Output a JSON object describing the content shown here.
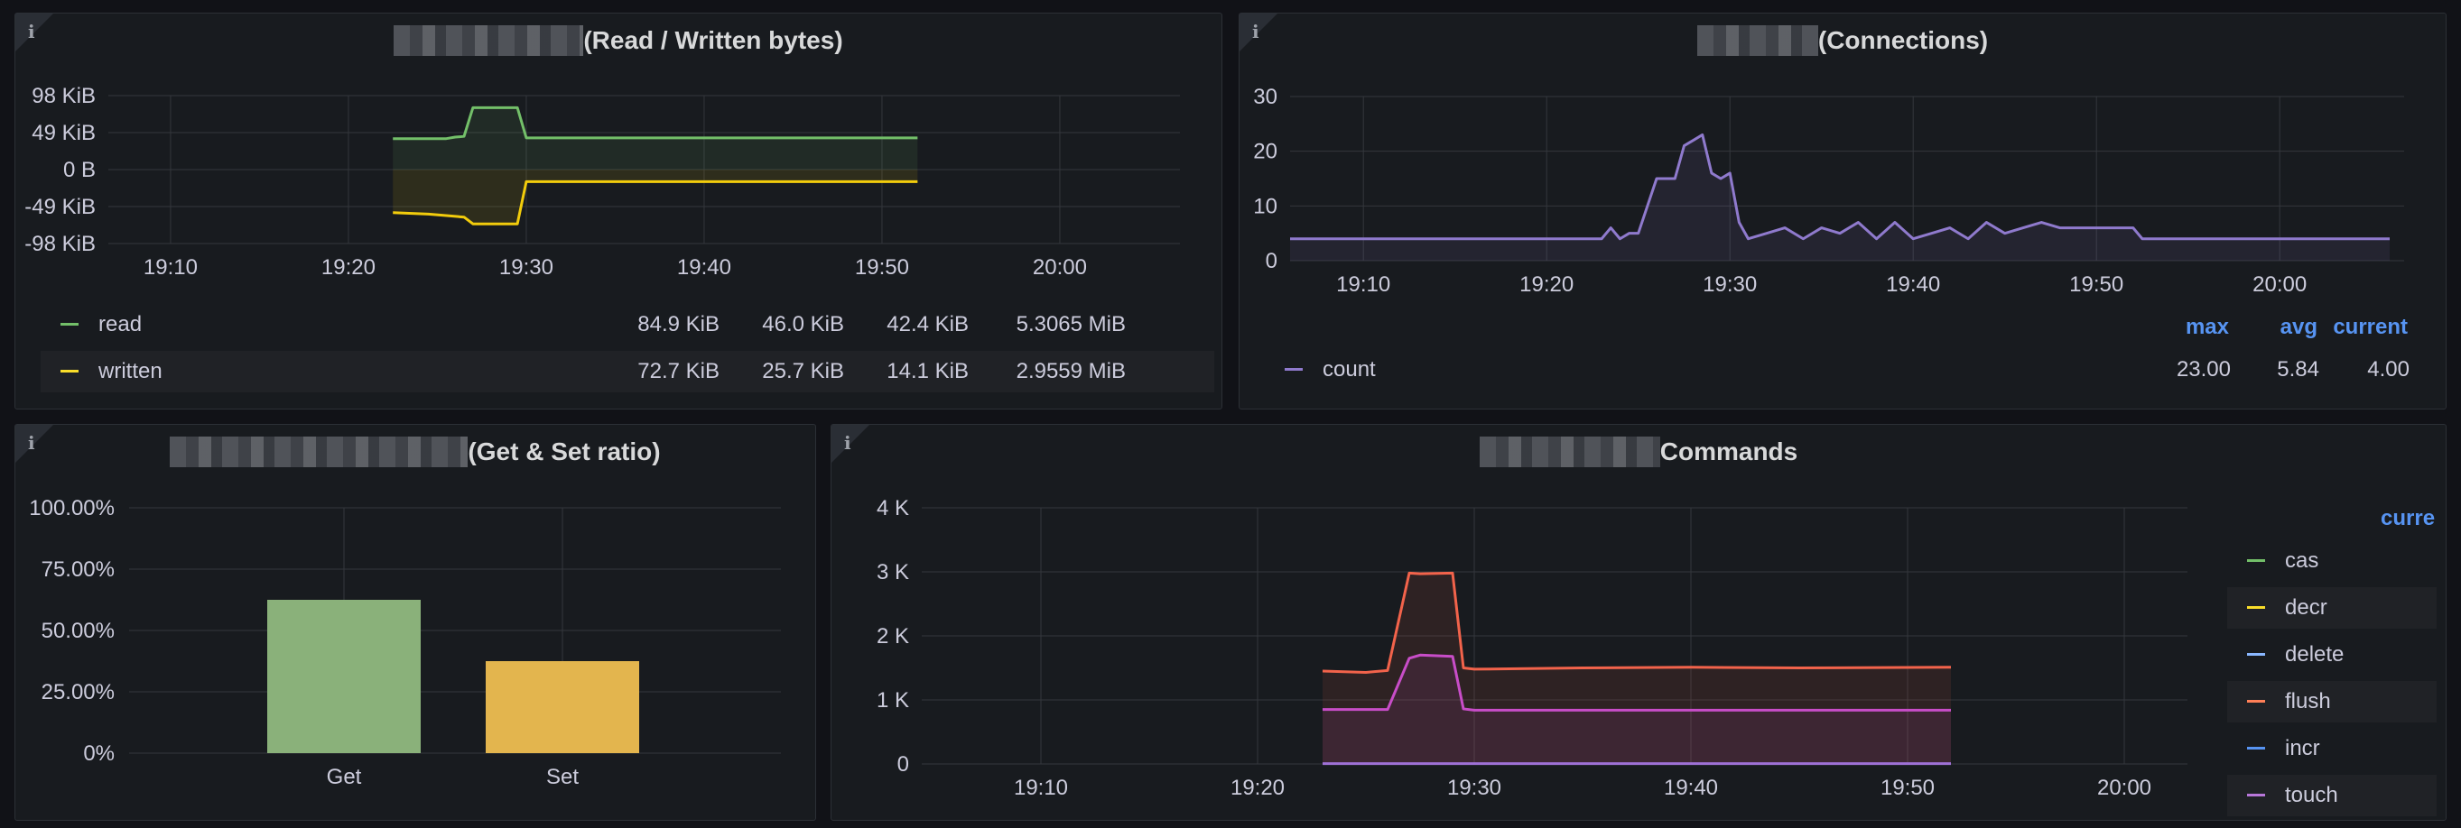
{
  "panels": {
    "bytes": {
      "title_suffix": "(Read / Written bytes)",
      "chart_data": {
        "type": "line",
        "x_ticks": [
          "19:10",
          "19:20",
          "19:30",
          "19:40",
          "19:50",
          "20:00"
        ],
        "y_ticks": [
          "98 KiB",
          "49 KiB",
          "0 B",
          "-49 KiB",
          "-98 KiB"
        ],
        "ylim": [
          -98,
          98
        ],
        "series": [
          {
            "name": "read",
            "color": "#73bf69",
            "x": [
              "19:22:30",
              "19:25:30",
              "19:26:00",
              "19:26:30",
              "19:27:00",
              "19:27:30",
              "19:29:30",
              "19:30:00",
              "19:52:00"
            ],
            "y": [
              41,
              41,
              43,
              44,
              82,
              82,
              82,
              42,
              42
            ]
          },
          {
            "name": "written",
            "color": "#f2cc0c",
            "x": [
              "19:22:30",
              "19:24:30",
              "19:25:30",
              "19:26:30",
              "19:27:00",
              "19:29:30",
              "19:30:00",
              "19:52:00"
            ],
            "y": [
              -57,
              -59,
              -61,
              -63,
              -72,
              -72,
              -16,
              -16
            ]
          }
        ]
      },
      "legend": [
        {
          "name": "read",
          "color": "#73bf69",
          "values": [
            "84.9 KiB",
            "46.0 KiB",
            "42.4 KiB",
            "5.3065 MiB"
          ]
        },
        {
          "name": "written",
          "color": "#fade2a",
          "values": [
            "72.7 KiB",
            "25.7 KiB",
            "14.1 KiB",
            "2.9559 MiB"
          ]
        }
      ]
    },
    "connections": {
      "title_suffix": "(Connections)",
      "chart_data": {
        "type": "line",
        "x_ticks": [
          "19:10",
          "19:20",
          "19:30",
          "19:40",
          "19:50",
          "20:00"
        ],
        "y_ticks": [
          "30",
          "20",
          "10",
          "0"
        ],
        "ylim": [
          0,
          30
        ],
        "series": [
          {
            "name": "count",
            "color": "#8f7acd",
            "x": [
              "19:06",
              "19:23",
              "19:23:30",
              "19:24",
              "19:24:30",
              "19:25",
              "19:25:30",
              "19:26",
              "19:26:30",
              "19:27",
              "19:27:30",
              "19:28",
              "19:28:30",
              "19:29",
              "19:29:30",
              "19:30",
              "19:30:30",
              "19:31",
              "19:32",
              "19:33",
              "19:34",
              "19:35",
              "19:36",
              "19:37",
              "19:38",
              "19:39",
              "19:40",
              "19:41",
              "19:42",
              "19:43",
              "19:44",
              "19:45",
              "19:46",
              "19:47",
              "19:48",
              "19:52",
              "19:52:30",
              "20:06"
            ],
            "y": [
              4,
              4,
              6,
              4,
              5,
              5,
              10,
              15,
              15,
              15,
              21,
              22,
              23,
              16,
              15,
              16,
              7,
              4,
              5,
              6,
              4,
              6,
              5,
              7,
              4,
              7,
              4,
              5,
              6,
              4,
              7,
              5,
              6,
              7,
              6,
              6,
              4,
              4
            ]
          }
        ]
      },
      "legend_headers": [
        "max",
        "avg",
        "current"
      ],
      "legend": [
        {
          "name": "count",
          "color": "#8f7acd",
          "values": [
            "23.00",
            "5.84",
            "4.00"
          ]
        }
      ]
    },
    "ratio": {
      "title_suffix": "(Get & Set ratio)",
      "chart_data": {
        "type": "bar",
        "categories": [
          "Get",
          "Set"
        ],
        "values": [
          62.5,
          37.5
        ],
        "colors": [
          "#8ab17a",
          "#e3b54e"
        ],
        "y_ticks": [
          "100.00%",
          "75.00%",
          "50.00%",
          "25.00%",
          "0%"
        ],
        "ylim": [
          0,
          100
        ]
      }
    },
    "commands": {
      "title_suffix": "Commands",
      "chart_data": {
        "type": "line",
        "x_ticks": [
          "19:10",
          "19:20",
          "19:30",
          "19:40",
          "19:50",
          "20:00"
        ],
        "y_ticks": [
          "4 K",
          "3 K",
          "2 K",
          "1 K",
          "0"
        ],
        "ylim": [
          0,
          4000
        ],
        "series": [
          {
            "name": "flush",
            "color": "#f2634b",
            "x": [
              "19:23",
              "19:25",
              "19:26",
              "19:27",
              "19:27:30",
              "19:29",
              "19:29:30",
              "19:30",
              "19:35",
              "19:40",
              "19:45",
              "19:52"
            ],
            "y": [
              1450,
              1430,
              1460,
              2980,
              2970,
              2980,
              1500,
              1480,
              1500,
              1510,
              1500,
              1510
            ]
          },
          {
            "name": "touch",
            "color": "#c84dc8",
            "x": [
              "19:23",
              "19:26",
              "19:27",
              "19:27:30",
              "19:29",
              "19:29:30",
              "19:30",
              "19:52"
            ],
            "y": [
              850,
              850,
              1650,
              1700,
              1680,
              860,
              840,
              840
            ]
          },
          {
            "name": "cas",
            "color": "#9f71d6",
            "x": [
              "19:23",
              "19:52"
            ],
            "y": [
              5,
              5
            ]
          }
        ]
      },
      "legend_header": "curre",
      "legend": [
        {
          "name": "cas",
          "color": "#73bf69"
        },
        {
          "name": "decr",
          "color": "#fade2a"
        },
        {
          "name": "delete",
          "color": "#8ab8ff"
        },
        {
          "name": "flush",
          "color": "#ff7f57"
        },
        {
          "name": "incr",
          "color": "#5794f2"
        },
        {
          "name": "touch",
          "color": "#b877d9"
        }
      ]
    }
  }
}
